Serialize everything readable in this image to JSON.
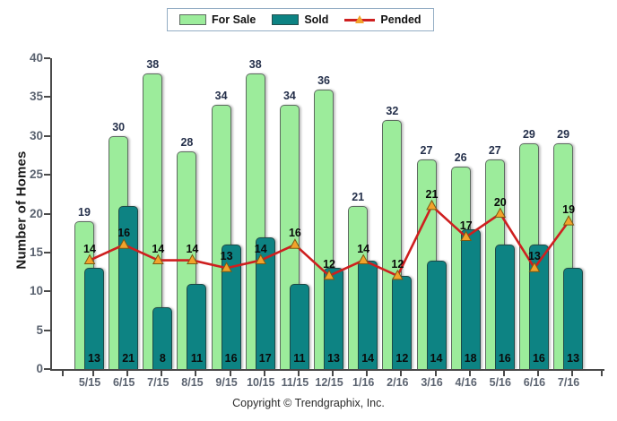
{
  "legend": {
    "for_sale": "For Sale",
    "sold": "Sold",
    "pended": "Pended"
  },
  "footer": "Copyright © Trendgraphix, Inc.",
  "chart_data": {
    "type": "bar",
    "categories": [
      "5/15",
      "6/15",
      "7/15",
      "8/15",
      "9/15",
      "10/15",
      "11/15",
      "12/15",
      "1/16",
      "2/16",
      "3/16",
      "4/16",
      "5/16",
      "6/16",
      "7/16"
    ],
    "series": [
      {
        "name": "For Sale",
        "type": "bar",
        "color": "#9CEC9B",
        "values": [
          19,
          30,
          38,
          28,
          34,
          38,
          34,
          36,
          21,
          32,
          27,
          26,
          27,
          29,
          29
        ]
      },
      {
        "name": "Sold",
        "type": "bar",
        "color": "#0D8383",
        "values": [
          13,
          21,
          8,
          11,
          16,
          17,
          11,
          13,
          14,
          12,
          14,
          18,
          16,
          16,
          13
        ]
      },
      {
        "name": "Pended",
        "type": "line",
        "color": "#CE1F1F",
        "marker": "triangle",
        "marker_color": "#F2A32B",
        "values": [
          14,
          16,
          14,
          14,
          13,
          14,
          16,
          12,
          14,
          12,
          21,
          17,
          20,
          13,
          19
        ]
      }
    ],
    "title": "",
    "xlabel": "",
    "ylabel": "Number of Homes",
    "ylim": [
      0,
      40
    ],
    "ytick_step": 5,
    "grid": false,
    "legend_position": "top"
  }
}
